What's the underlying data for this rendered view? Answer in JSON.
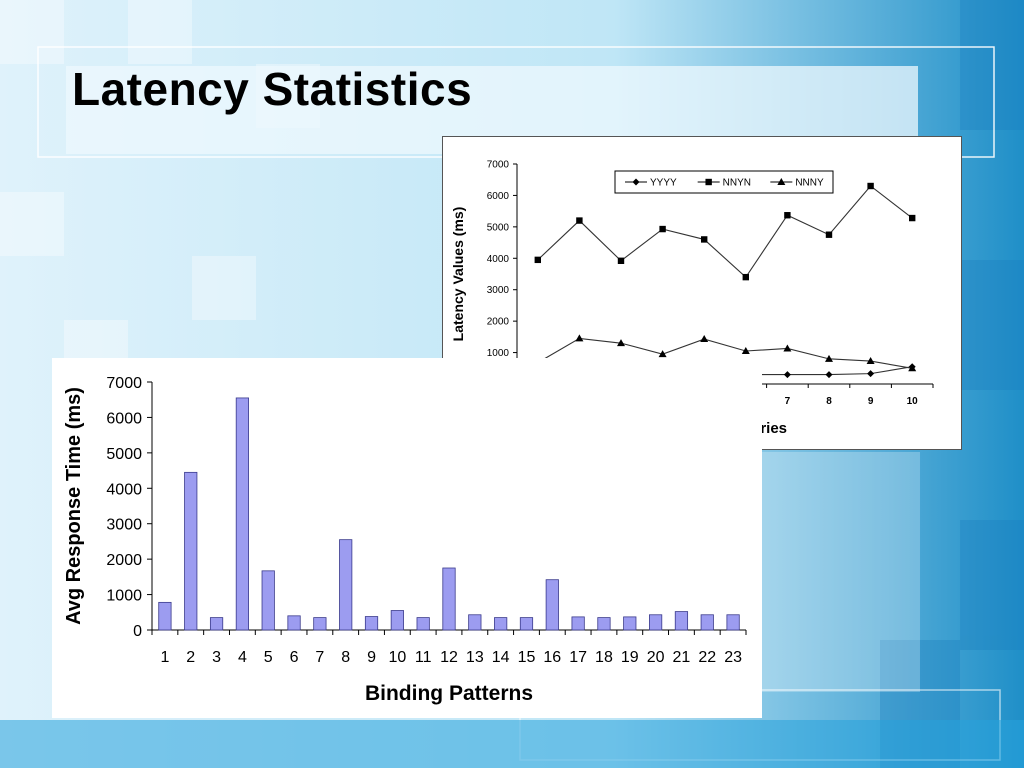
{
  "slide": {
    "title": "Latency Statistics"
  },
  "colors": {
    "bar_fill": "#9c9cf0",
    "bar_stroke": "#3a3a8c",
    "line": "#333333",
    "frame_blue": "#1a8fd0"
  },
  "chart_data": [
    {
      "type": "line",
      "title": "",
      "xlabel": "Random Queries",
      "ylabel": "Latency Values (ms)",
      "x": [
        1,
        2,
        3,
        4,
        5,
        6,
        7,
        8,
        9,
        10
      ],
      "ylim": [
        0,
        7000
      ],
      "yticks": [
        0,
        1000,
        2000,
        3000,
        4000,
        5000,
        6000,
        7000
      ],
      "grid": false,
      "legend": "top-center",
      "series": [
        {
          "name": "YYYY",
          "marker": "diamond",
          "values": [
            300,
            300,
            380,
            400,
            330,
            300,
            300,
            300,
            330,
            550
          ]
        },
        {
          "name": "NNYN",
          "marker": "square",
          "values": [
            3950,
            5200,
            3920,
            4930,
            4600,
            3400,
            5370,
            4750,
            6300,
            5280
          ]
        },
        {
          "name": "NNNY",
          "marker": "triangle",
          "values": [
            680,
            1450,
            1300,
            950,
            1430,
            1050,
            1130,
            800,
            730,
            500
          ]
        }
      ]
    },
    {
      "type": "bar",
      "title": "",
      "xlabel": "Binding Patterns",
      "ylabel": "Avg Response Time (ms)",
      "categories": [
        "1",
        "2",
        "3",
        "4",
        "5",
        "6",
        "7",
        "8",
        "9",
        "10",
        "11",
        "12",
        "13",
        "14",
        "15",
        "16",
        "17",
        "18",
        "19",
        "20",
        "21",
        "22",
        "23"
      ],
      "values": [
        780,
        4450,
        350,
        6550,
        1670,
        400,
        350,
        2550,
        380,
        550,
        350,
        1750,
        430,
        350,
        350,
        1420,
        370,
        350,
        370,
        430,
        520,
        430,
        430
      ],
      "ylim": [
        0,
        7000
      ],
      "yticks": [
        0,
        1000,
        2000,
        3000,
        4000,
        5000,
        6000,
        7000
      ],
      "grid": false
    }
  ]
}
